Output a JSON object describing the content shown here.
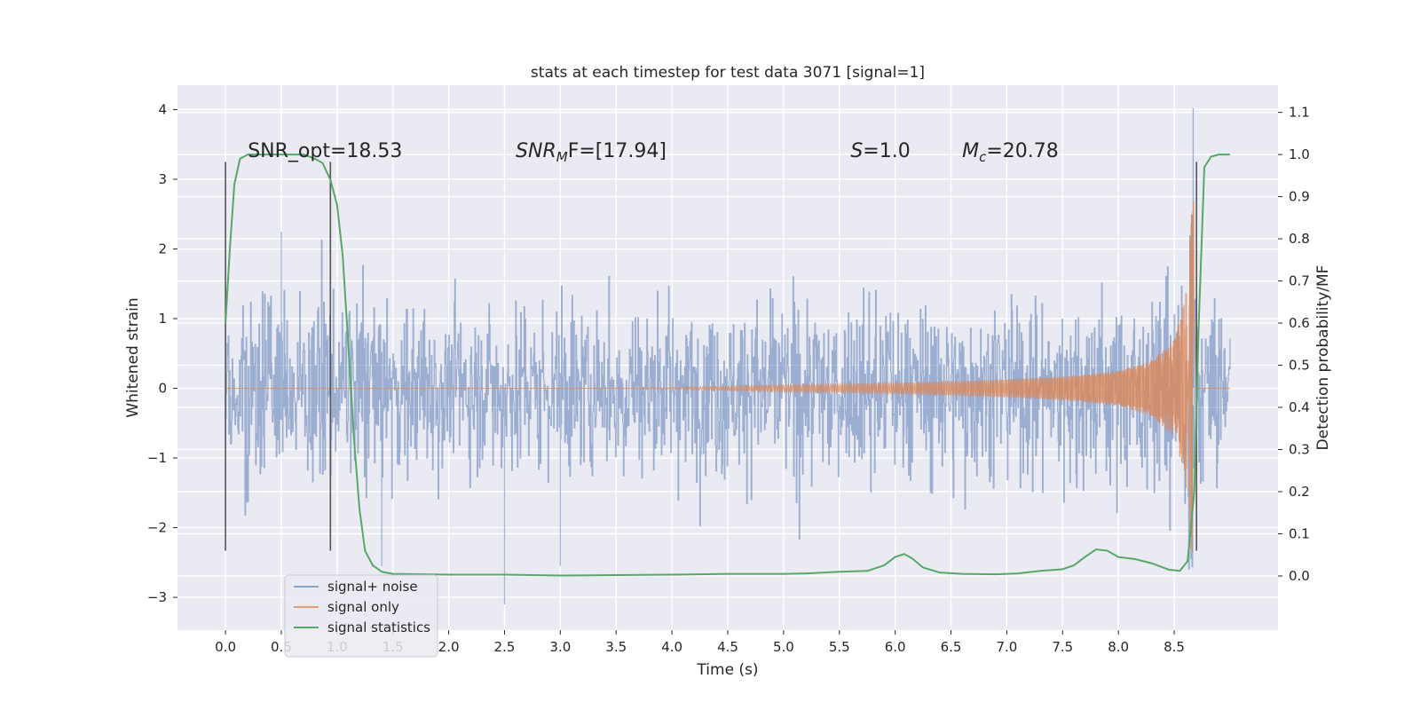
{
  "chart_data": {
    "type": "line",
    "title": "stats at each timestep for test data 3071 [signal=1]",
    "xlabel": "Time (s)",
    "ylabel": "Whitened strain",
    "y2label": "Detection probability/MF",
    "xlim": [
      -0.43,
      9.43
    ],
    "ylim": [
      -3.47,
      4.35
    ],
    "y2lim": [
      -0.1285,
      1.1645
    ],
    "xticks": [
      0.0,
      0.5,
      1.0,
      1.5,
      2.0,
      2.5,
      3.0,
      3.5,
      4.0,
      4.5,
      5.0,
      5.5,
      6.0,
      6.5,
      7.0,
      7.5,
      8.0,
      8.5
    ],
    "xtick_labels": [
      "0.0",
      "0.5",
      "1.0",
      "1.5",
      "2.0",
      "2.5",
      "3.0",
      "3.5",
      "4.0",
      "4.5",
      "5.0",
      "5.5",
      "6.0",
      "6.5",
      "7.0",
      "7.5",
      "8.0",
      "8.5"
    ],
    "yticks": [
      -3,
      -2,
      -1,
      0,
      1,
      2,
      3,
      4
    ],
    "ytick_labels": [
      "−3",
      "−2",
      "−1",
      "0",
      "1",
      "2",
      "3",
      "4"
    ],
    "y2ticks": [
      0.0,
      0.1,
      0.2,
      0.3,
      0.4,
      0.5,
      0.6,
      0.7,
      0.8,
      0.9,
      1.0,
      1.1
    ],
    "y2tick_labels": [
      "0.0",
      "0.1",
      "0.2",
      "0.3",
      "0.4",
      "0.5",
      "0.6",
      "0.7",
      "0.8",
      "0.9",
      "1.0",
      "1.1"
    ],
    "grid": true,
    "legend_position": "lower-left",
    "series": [
      {
        "name": "signal+ noise",
        "axis": "left",
        "color": "#4c72b0",
        "opacity": 0.5,
        "x_range": [
          0.0,
          9.0
        ],
        "envelope_typical": 1.5,
        "peaks": [
          [
            0.5,
            2.25
          ],
          [
            1.4,
            -2.55
          ],
          [
            2.5,
            -3.1
          ],
          [
            3.0,
            -2.55
          ],
          [
            8.67,
            4.02
          ],
          [
            8.65,
            -2.45
          ]
        ]
      },
      {
        "name": "signal only",
        "axis": "left",
        "color": "#dd8452",
        "x": [
          0.0,
          3.5,
          4.0,
          4.5,
          5.0,
          5.5,
          6.0,
          6.5,
          7.0,
          7.5,
          8.0,
          8.3,
          8.5,
          8.6,
          8.65,
          8.68,
          8.7,
          9.0
        ],
        "amplitude": [
          0.0,
          0.0,
          0.01,
          0.03,
          0.05,
          0.06,
          0.08,
          0.1,
          0.13,
          0.17,
          0.25,
          0.4,
          0.7,
          1.3,
          2.5,
          2.8,
          0.0,
          0.0
        ],
        "coalescence_time": 8.68
      },
      {
        "name": "signal statistics",
        "axis": "right",
        "color": "#55a868",
        "x": [
          0.0,
          0.04,
          0.08,
          0.13,
          0.2,
          0.3,
          0.5,
          0.7,
          0.8,
          0.87,
          0.94,
          1.0,
          1.05,
          1.1,
          1.15,
          1.2,
          1.25,
          1.32,
          1.4,
          1.5,
          2.0,
          2.5,
          3.0,
          3.5,
          4.0,
          4.5,
          5.0,
          5.2,
          5.5,
          5.75,
          5.9,
          6.0,
          6.08,
          6.15,
          6.25,
          6.4,
          6.6,
          6.9,
          7.1,
          7.3,
          7.5,
          7.6,
          7.7,
          7.8,
          7.9,
          8.0,
          8.15,
          8.3,
          8.45,
          8.55,
          8.62,
          8.68,
          8.72,
          8.77,
          8.83,
          8.9,
          9.0
        ],
        "y": [
          0.6,
          0.78,
          0.93,
          0.99,
          1.0,
          1.0,
          1.0,
          1.0,
          0.99,
          0.98,
          0.94,
          0.88,
          0.76,
          0.55,
          0.33,
          0.16,
          0.06,
          0.025,
          0.01,
          0.005,
          0.003,
          0.003,
          0.001,
          0.002,
          0.003,
          0.005,
          0.005,
          0.006,
          0.01,
          0.012,
          0.025,
          0.045,
          0.052,
          0.042,
          0.02,
          0.008,
          0.005,
          0.004,
          0.006,
          0.012,
          0.016,
          0.025,
          0.045,
          0.063,
          0.06,
          0.045,
          0.04,
          0.03,
          0.015,
          0.012,
          0.035,
          0.2,
          0.6,
          0.97,
          0.995,
          1.0,
          1.0
        ]
      }
    ],
    "vertical_markers": [
      {
        "x": 0.0,
        "y_range": [
          -2.33,
          3.25
        ]
      },
      {
        "x": 0.94,
        "y_range": [
          -2.33,
          3.25
        ]
      },
      {
        "x": 8.7,
        "y_range": [
          -2.33,
          3.25
        ]
      }
    ],
    "annotations": [
      {
        "text": "SNR_opt=18.53",
        "x": 0.2,
        "y": 3.32,
        "italic": false
      },
      {
        "text": "SNRMF=[17.94]",
        "x": 2.6,
        "y": 3.32,
        "italic": true
      },
      {
        "text": "S=1.0",
        "x": 5.6,
        "y": 3.32,
        "italic": false
      },
      {
        "text": "Mc=20.78",
        "x": 6.6,
        "y": 3.32,
        "italic": false
      }
    ],
    "annotation_parts": {
      "snr_opt": "SNR_opt=18.53",
      "snr_mf_base": "SNR",
      "snr_mf_sub": "M",
      "snr_mf_rest": "F=[17.94]",
      "s_sym": "S",
      "s_val": "=1.0",
      "mc_sym": "M",
      "mc_sub": "c",
      "mc_val": "=20.78"
    }
  }
}
